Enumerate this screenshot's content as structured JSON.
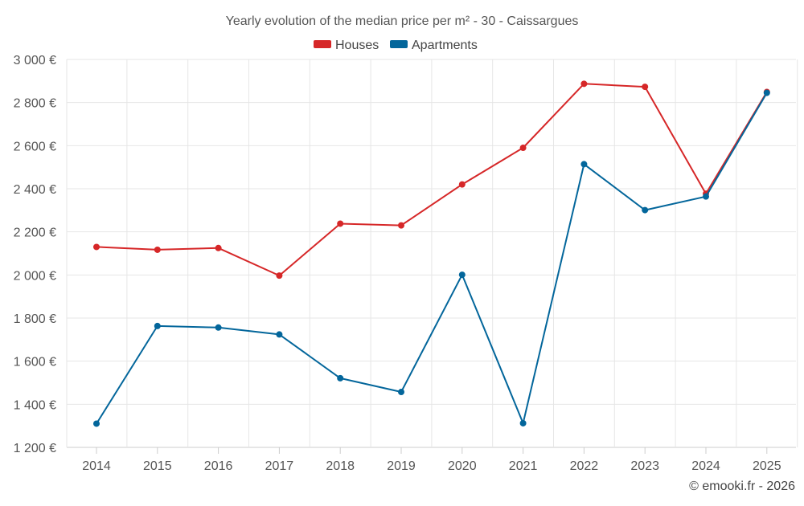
{
  "chart_data": {
    "type": "line",
    "title": "Yearly evolution of the median price per m² - 30 - Caissargues",
    "categories": [
      "2014",
      "2015",
      "2016",
      "2017",
      "2018",
      "2019",
      "2020",
      "2021",
      "2022",
      "2023",
      "2024",
      "2025"
    ],
    "series": [
      {
        "name": "Houses",
        "color": "#d62728",
        "values": [
          2130,
          2117,
          2125,
          1997,
          2238,
          2230,
          2420,
          2590,
          2887,
          2873,
          2377,
          2849
        ]
      },
      {
        "name": "Apartments",
        "color": "#03669b",
        "values": [
          1310,
          1763,
          1756,
          1724,
          1521,
          1457,
          2001,
          1312,
          2514,
          2301,
          2364,
          2845
        ]
      }
    ],
    "ylim": [
      1200,
      3000
    ],
    "yticks": [
      1200,
      1400,
      1600,
      1800,
      2000,
      2200,
      2400,
      2600,
      2800,
      3000
    ],
    "ytick_labels": [
      "1 200 €",
      "1 400 €",
      "1 600 €",
      "1 800 €",
      "2 000 €",
      "2 200 €",
      "2 400 €",
      "2 600 €",
      "2 800 €",
      "3 000 €"
    ],
    "xlabel": "",
    "ylabel": "",
    "grid": true,
    "legend_position": "top-center"
  },
  "footer": {
    "credit": "© emooki.fr - 2026"
  },
  "colors": {
    "axis_text": "#555555",
    "grid": "#e6e6e6",
    "axis_line": "#cccccc"
  }
}
